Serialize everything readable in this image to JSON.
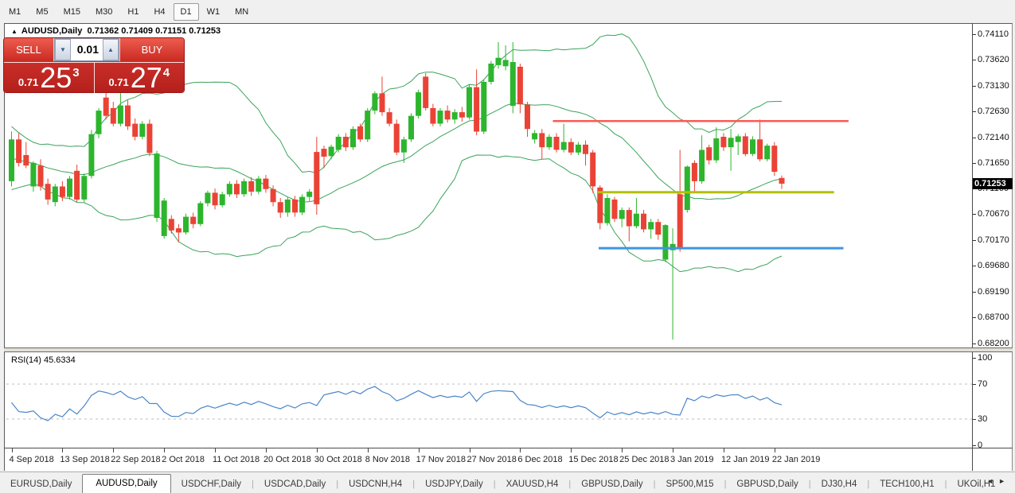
{
  "toolbar": {
    "timeframes": [
      {
        "label": "M1",
        "active": false
      },
      {
        "label": "M5",
        "active": false
      },
      {
        "label": "M15",
        "active": false
      },
      {
        "label": "M30",
        "active": false
      },
      {
        "label": "H1",
        "active": false
      },
      {
        "label": "H4",
        "active": false
      },
      {
        "label": "D1",
        "active": true
      },
      {
        "label": "W1",
        "active": false
      },
      {
        "label": "MN",
        "active": false
      }
    ]
  },
  "chart_header": {
    "arrow_icon": "▲",
    "symbol": "AUDUSD,Daily",
    "ohlc_text": "0.71362 0.71409 0.71151 0.71253"
  },
  "trade_panel": {
    "sell_label": "SELL",
    "buy_label": "BUY",
    "volume": "0.01",
    "volume_down_icon": "▼",
    "volume_up_icon": "▲",
    "sell_price_prefix": "0.71",
    "sell_price_big": "25",
    "sell_price_sup": "3",
    "buy_price_prefix": "0.71",
    "buy_price_big": "27",
    "buy_price_sup": "4"
  },
  "price_axis": {
    "ticks": [
      "0.74110",
      "0.73620",
      "0.73130",
      "0.72630",
      "0.72140",
      "0.71650",
      "0.71160",
      "0.70670",
      "0.70170",
      "0.69680",
      "0.69190",
      "0.68700",
      "0.68200"
    ],
    "current": "0.71253"
  },
  "rsi_panel": {
    "name": "RSI(14)",
    "value": "45.6334",
    "levels": [
      "100",
      "70",
      "30",
      "0"
    ],
    "level_values": [
      100,
      70,
      30,
      0
    ],
    "overbought": 70,
    "oversold": 30
  },
  "bottom_tabs": {
    "items": [
      {
        "label": "EURUSD,Daily",
        "active": false
      },
      {
        "label": "AUDUSD,Daily",
        "active": true
      },
      {
        "label": "USDCHF,Daily",
        "active": false
      },
      {
        "label": "USDCAD,Daily",
        "active": false
      },
      {
        "label": "USDCNH,H4",
        "active": false
      },
      {
        "label": "USDJPY,Daily",
        "active": false
      },
      {
        "label": "XAUUSD,H4",
        "active": false
      },
      {
        "label": "GBPUSD,Daily",
        "active": false
      },
      {
        "label": "SP500,M15",
        "active": false
      },
      {
        "label": "GBPUSD,Daily",
        "active": false
      },
      {
        "label": "DJ30,H4",
        "active": false
      },
      {
        "label": "TECH100,H1",
        "active": false
      },
      {
        "label": "UKOil,H1",
        "active": false
      }
    ],
    "scroll_left_icon": "◄",
    "scroll_right_icon": "►"
  },
  "chart_data": {
    "type": "candlestick",
    "symbol": "AUDUSD",
    "timeframe": "Daily",
    "last_ohlc": {
      "open": 0.71362,
      "high": 0.71409,
      "low": 0.71151,
      "close": 0.71253
    },
    "y_axis_range": [
      0.6812,
      0.7431
    ],
    "price_tick_values": [
      0.7411,
      0.7362,
      0.7313,
      0.7263,
      0.7214,
      0.7165,
      0.7116,
      0.7067,
      0.7017,
      0.6968,
      0.6919,
      0.687,
      0.682
    ],
    "date_labels": [
      "4 Sep 2018",
      "13 Sep 2018",
      "22 Sep 2018",
      "2 Oct 2018",
      "11 Oct 2018",
      "20 Oct 2018",
      "30 Oct 2018",
      "8 Nov 2018",
      "17 Nov 2018",
      "27 Nov 2018",
      "6 Dec 2018",
      "15 Dec 2018",
      "25 Dec 2018",
      "3 Jan 2019",
      "12 Jan 2019",
      "22 Jan 2019"
    ],
    "label_every_n_bars": 7,
    "pre_closes": [
      0.725,
      0.724,
      0.7228,
      0.7215,
      0.7205,
      0.7195,
      0.7185,
      0.7175,
      0.7168,
      0.716,
      0.7155,
      0.7148,
      0.7142,
      0.715,
      0.7158,
      0.7165,
      0.7158,
      0.715,
      0.7142,
      0.7136
    ],
    "candles": [
      [
        0.713,
        0.7225,
        0.712,
        0.721
      ],
      [
        0.721,
        0.7222,
        0.7158,
        0.7165
      ],
      [
        0.718,
        0.7205,
        0.7155,
        0.716
      ],
      [
        0.712,
        0.7168,
        0.711,
        0.7165
      ],
      [
        0.716,
        0.7172,
        0.7112,
        0.712
      ],
      [
        0.7125,
        0.7135,
        0.7085,
        0.7095
      ],
      [
        0.709,
        0.7125,
        0.7082,
        0.712
      ],
      [
        0.712,
        0.713,
        0.7092,
        0.71
      ],
      [
        0.71,
        0.714,
        0.7095,
        0.7135
      ],
      [
        0.715,
        0.7162,
        0.709,
        0.7095
      ],
      [
        0.7095,
        0.7145,
        0.709,
        0.714
      ],
      [
        0.714,
        0.7228,
        0.7135,
        0.722
      ],
      [
        0.722,
        0.727,
        0.7212,
        0.7265
      ],
      [
        0.729,
        0.7305,
        0.7248,
        0.7255
      ],
      [
        0.727,
        0.7282,
        0.7235,
        0.724
      ],
      [
        0.724,
        0.731,
        0.7235,
        0.7275
      ],
      [
        0.7275,
        0.7285,
        0.7228,
        0.7235
      ],
      [
        0.724,
        0.725,
        0.7208,
        0.7215
      ],
      [
        0.7215,
        0.7245,
        0.721,
        0.724
      ],
      [
        0.724,
        0.7248,
        0.7178,
        0.7184
      ],
      [
        0.706,
        0.7188,
        0.7052,
        0.7183
      ],
      [
        0.7025,
        0.7098,
        0.702,
        0.7093
      ],
      [
        0.7058,
        0.7065,
        0.703,
        0.7036
      ],
      [
        0.704,
        0.7048,
        0.7013,
        0.7032
      ],
      [
        0.7032,
        0.7068,
        0.7028,
        0.7062
      ],
      [
        0.7062,
        0.707,
        0.704,
        0.7048
      ],
      [
        0.7048,
        0.7092,
        0.7044,
        0.7088
      ],
      [
        0.7088,
        0.7112,
        0.7082,
        0.7108
      ],
      [
        0.7108,
        0.7116,
        0.7076,
        0.7084
      ],
      [
        0.7084,
        0.711,
        0.708,
        0.7105
      ],
      [
        0.7105,
        0.713,
        0.71,
        0.7125
      ],
      [
        0.7125,
        0.7132,
        0.7098,
        0.7105
      ],
      [
        0.7105,
        0.7135,
        0.71,
        0.713
      ],
      [
        0.713,
        0.7138,
        0.7102,
        0.711
      ],
      [
        0.711,
        0.714,
        0.7105,
        0.7135
      ],
      [
        0.7135,
        0.7142,
        0.7108,
        0.7115
      ],
      [
        0.7115,
        0.7122,
        0.7082,
        0.709
      ],
      [
        0.709,
        0.7098,
        0.706,
        0.707
      ],
      [
        0.707,
        0.71,
        0.7062,
        0.7095
      ],
      [
        0.7095,
        0.7102,
        0.7062,
        0.707
      ],
      [
        0.707,
        0.7105,
        0.7065,
        0.71
      ],
      [
        0.71,
        0.7115,
        0.7092,
        0.711
      ],
      [
        0.7186,
        0.7215,
        0.7066,
        0.7086
      ],
      [
        0.7192,
        0.7198,
        0.7155,
        0.7177
      ],
      [
        0.7178,
        0.72,
        0.7172,
        0.7196
      ],
      [
        0.719,
        0.722,
        0.7185,
        0.7215
      ],
      [
        0.7215,
        0.7222,
        0.7188,
        0.7195
      ],
      [
        0.7195,
        0.7235,
        0.719,
        0.723
      ],
      [
        0.7235,
        0.724,
        0.7205,
        0.721
      ],
      [
        0.721,
        0.727,
        0.7205,
        0.7265
      ],
      [
        0.7265,
        0.7302,
        0.7258,
        0.7298
      ],
      [
        0.7298,
        0.733,
        0.7255,
        0.7262
      ],
      [
        0.7262,
        0.727,
        0.7235,
        0.724
      ],
      [
        0.724,
        0.7248,
        0.718,
        0.7185
      ],
      [
        0.7185,
        0.7215,
        0.7165,
        0.721
      ],
      [
        0.721,
        0.726,
        0.7205,
        0.7255
      ],
      [
        0.7255,
        0.7305,
        0.725,
        0.73
      ],
      [
        0.733,
        0.7337,
        0.7265,
        0.727
      ],
      [
        0.727,
        0.7278,
        0.7235,
        0.724
      ],
      [
        0.724,
        0.727,
        0.7235,
        0.7265
      ],
      [
        0.7265,
        0.7275,
        0.7242,
        0.7248
      ],
      [
        0.7248,
        0.7268,
        0.724,
        0.7262
      ],
      [
        0.7262,
        0.7272,
        0.7244,
        0.7252
      ],
      [
        0.7252,
        0.7315,
        0.7248,
        0.731
      ],
      [
        0.731,
        0.7344,
        0.7218,
        0.7225
      ],
      [
        0.7225,
        0.7325,
        0.722,
        0.732
      ],
      [
        0.732,
        0.736,
        0.7315,
        0.7355
      ],
      [
        0.7352,
        0.7396,
        0.7345,
        0.7366
      ],
      [
        0.735,
        0.739,
        0.7342,
        0.7362
      ],
      [
        0.7274,
        0.7396,
        0.726,
        0.7358
      ],
      [
        0.7349,
        0.7355,
        0.726,
        0.7277
      ],
      [
        0.7277,
        0.7282,
        0.7215,
        0.723
      ],
      [
        0.721,
        0.7228,
        0.7202,
        0.7222
      ],
      [
        0.7222,
        0.723,
        0.7172,
        0.7195
      ],
      [
        0.7195,
        0.722,
        0.719,
        0.7215
      ],
      [
        0.7215,
        0.7222,
        0.7185,
        0.719
      ],
      [
        0.719,
        0.724,
        0.7185,
        0.7205
      ],
      [
        0.7205,
        0.7212,
        0.718,
        0.7185
      ],
      [
        0.7185,
        0.7205,
        0.718,
        0.72
      ],
      [
        0.72,
        0.7208,
        0.716,
        0.7182
      ],
      [
        0.7185,
        0.719,
        0.7108,
        0.712
      ],
      [
        0.7118,
        0.7122,
        0.7038,
        0.705
      ],
      [
        0.705,
        0.7105,
        0.7045,
        0.7098
      ],
      [
        0.7095,
        0.71,
        0.7052,
        0.7058
      ],
      [
        0.7058,
        0.708,
        0.7042,
        0.7075
      ],
      [
        0.7075,
        0.708,
        0.7015,
        0.7044
      ],
      [
        0.7044,
        0.7098,
        0.704,
        0.7068
      ],
      [
        0.7068,
        0.7075,
        0.7032,
        0.7038
      ],
      [
        0.7038,
        0.7058,
        0.702,
        0.7052
      ],
      [
        0.7052,
        0.7058,
        0.7018,
        0.7028
      ],
      [
        0.698,
        0.7048,
        0.6975,
        0.7046
      ],
      [
        0.6998,
        0.704,
        0.6827,
        0.701
      ],
      [
        0.7105,
        0.719,
        0.6995,
        0.7002
      ],
      [
        0.7075,
        0.716,
        0.707,
        0.7158
      ],
      [
        0.7165,
        0.717,
        0.7108,
        0.713
      ],
      [
        0.713,
        0.7218,
        0.7125,
        0.719
      ],
      [
        0.7195,
        0.72,
        0.7162,
        0.717
      ],
      [
        0.717,
        0.7233,
        0.7165,
        0.7212
      ],
      [
        0.7215,
        0.7222,
        0.7188,
        0.7195
      ],
      [
        0.7195,
        0.723,
        0.715,
        0.7213
      ],
      [
        0.7205,
        0.722,
        0.718,
        0.7216
      ],
      [
        0.7216,
        0.7222,
        0.7178,
        0.7182
      ],
      [
        0.7182,
        0.7216,
        0.7178,
        0.721
      ],
      [
        0.721,
        0.7248,
        0.7168,
        0.7172
      ],
      [
        0.7172,
        0.7202,
        0.7168,
        0.7198
      ],
      [
        0.7198,
        0.7205,
        0.714,
        0.7148
      ],
      [
        0.71362,
        0.71409,
        0.71151,
        0.71253
      ]
    ],
    "indicators": {
      "bollinger": {
        "period": 20,
        "deviation": 2
      },
      "rsi": {
        "period": 14,
        "displayed_value": 45.6334
      }
    },
    "hlines": [
      {
        "name": "resistance-line",
        "color": "#f95b55",
        "width": 2.5,
        "price": 0.7245,
        "from_bar": 74.5,
        "to_bar": 115.2
      },
      {
        "name": "pivot-line",
        "color": "#b3bf0a",
        "width": 3,
        "price": 0.7109,
        "from_bar": 80.7,
        "to_bar": 113.2
      },
      {
        "name": "support-line",
        "color": "#3d96e0",
        "width": 3,
        "price": 0.7002,
        "from_bar": 80.8,
        "to_bar": 114.5
      }
    ],
    "colors": {
      "up": "#2db52d",
      "down": "#ea4335",
      "bollinger": "#3aa35a",
      "rsi_line": "#4a86c8",
      "rsi_level": "#bdbdbd",
      "current_price_bg": "#000000"
    }
  }
}
